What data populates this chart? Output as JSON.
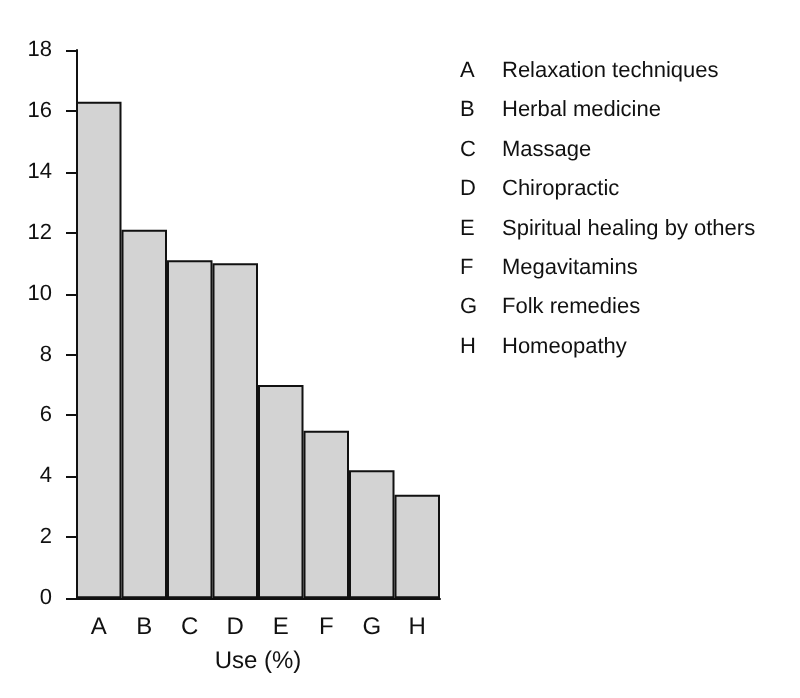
{
  "chart_data": {
    "type": "bar",
    "xlabel": "Use (%)",
    "categories": [
      "A",
      "B",
      "C",
      "D",
      "E",
      "F",
      "G",
      "H"
    ],
    "values": [
      16.3,
      12.1,
      11.1,
      11.0,
      7.0,
      5.5,
      4.2,
      3.4
    ],
    "color": "#d3d3d3",
    "ylim": [
      0,
      18
    ],
    "yticks": [
      0,
      2,
      4,
      6,
      8,
      10,
      12,
      14,
      16,
      18
    ],
    "grid": false,
    "annotations": [
      "A\tRelaxation techniques",
      "B\tHerbal medicine",
      "C\tMassage",
      "D\tChiropractic",
      "E\tSpiritual healing by others",
      "F\tMegavitamins",
      "G\tFolk remedies",
      "H\tHomeopathy"
    ]
  }
}
